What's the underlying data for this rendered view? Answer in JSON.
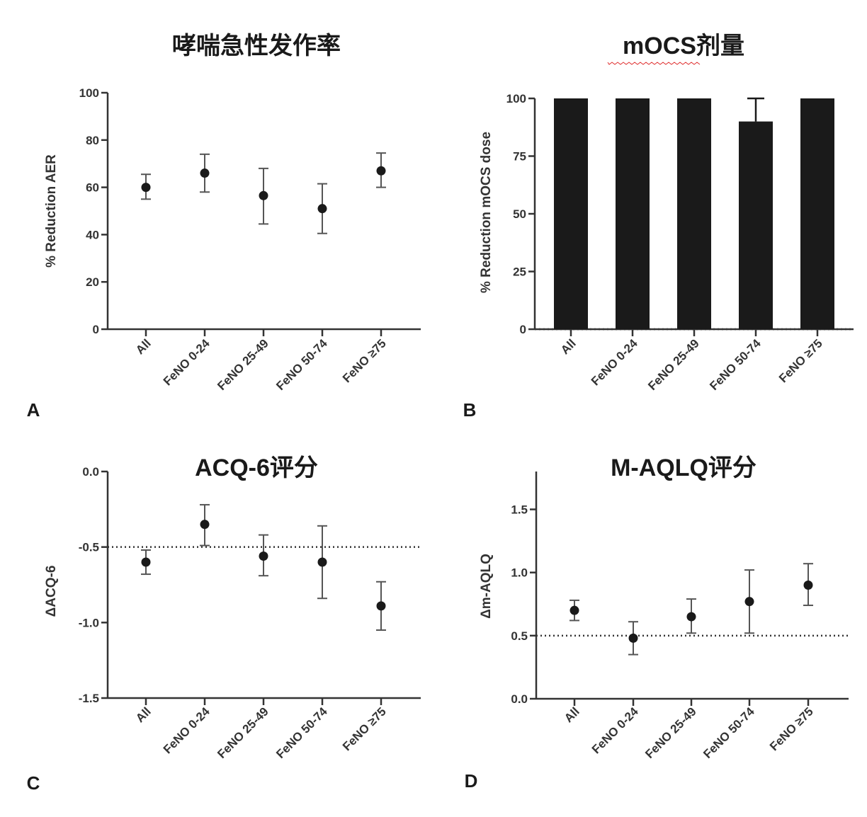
{
  "chart_data": [
    {
      "panel": "A",
      "type": "scatter",
      "title": "哮喘急性发作率",
      "xlabel": "",
      "ylabel": "% Reduction AER",
      "ylim": [
        0,
        100
      ],
      "yticks": [
        "0",
        "20",
        "40",
        "60",
        "80",
        "100"
      ],
      "ytick_values": [
        0,
        20,
        40,
        60,
        80,
        100
      ],
      "categories": [
        "All",
        "FeNO 0-24",
        "FeNO 25-49",
        "FeNO 50-74",
        "FeNO ≥75"
      ],
      "values": [
        60,
        66,
        56.5,
        51,
        67
      ],
      "err_low": [
        55,
        58,
        44.5,
        40.5,
        60
      ],
      "err_high": [
        65.5,
        74,
        68,
        61.5,
        74.5
      ],
      "reference_line": null
    },
    {
      "panel": "B",
      "type": "bar",
      "title": "mOCS剂量",
      "xlabel": "",
      "ylabel": "% Reduction mOCS dose",
      "ylim": [
        0,
        100
      ],
      "yticks": [
        "0",
        "25",
        "50",
        "75",
        "100"
      ],
      "ytick_values": [
        0,
        25,
        50,
        75,
        100
      ],
      "categories": [
        "All",
        "FeNO 0-24",
        "FeNO 25-49",
        "FeNO 50-74",
        "FeNO ≥75"
      ],
      "values": [
        100,
        100,
        100,
        90,
        100
      ],
      "err_low": [
        100,
        100,
        100,
        90,
        100
      ],
      "err_high": [
        100,
        100,
        100,
        100,
        100
      ],
      "reference_line": 0
    },
    {
      "panel": "C",
      "type": "scatter",
      "title": "ACQ-6评分",
      "xlabel": "",
      "ylabel": "ΔACQ-6",
      "ylim": [
        -1.5,
        0
      ],
      "yticks": [
        "-1.5",
        "-1.0",
        "-0.5",
        "0.0"
      ],
      "ytick_values": [
        -1.5,
        -1.0,
        -0.5,
        0.0
      ],
      "categories": [
        "All",
        "FeNO 0-24",
        "FeNO 25-49",
        "FeNO 50-74",
        "FeNO ≥75"
      ],
      "values": [
        -0.6,
        -0.35,
        -0.56,
        -0.6,
        -0.89
      ],
      "err_low": [
        -0.68,
        -0.49,
        -0.69,
        -0.84,
        -1.05
      ],
      "err_high": [
        -0.52,
        -0.22,
        -0.42,
        -0.36,
        -0.73
      ],
      "reference_line": -0.5
    },
    {
      "panel": "D",
      "type": "scatter",
      "title": "M-AQLQ评分",
      "xlabel": "",
      "ylabel": "Δm-AQLQ",
      "ylim": [
        0,
        1.8
      ],
      "yticks": [
        "0.0",
        "0.5",
        "1.0",
        "1.5"
      ],
      "ytick_values": [
        0,
        0.5,
        1.0,
        1.5
      ],
      "categories": [
        "All",
        "FeNO 0-24",
        "FeNO 25-49",
        "FeNO 50-74",
        "FeNO ≥75"
      ],
      "values": [
        0.7,
        0.48,
        0.65,
        0.77,
        0.9
      ],
      "err_low": [
        0.62,
        0.35,
        0.52,
        0.52,
        0.74
      ],
      "err_high": [
        0.78,
        0.61,
        0.79,
        1.02,
        1.07
      ],
      "reference_line": 0.5
    }
  ],
  "colors": {
    "marker": "#1a1a1a",
    "axis": "#333333",
    "error": "#555555",
    "squiggle": "#e03030"
  }
}
